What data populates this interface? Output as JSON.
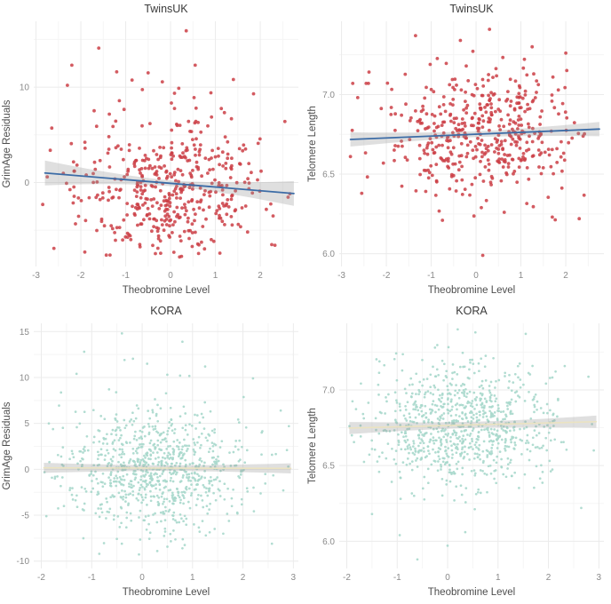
{
  "figure": {
    "background": "#ffffff",
    "grid_major_color": "#ebebeb",
    "grid_minor_color": "#f5f5f5",
    "tick_label_color": "#8a8a8a",
    "axis_label_color": "#4d4d4d",
    "title_color": "#3a3a3a",
    "layout": "2x2 scatter panels"
  },
  "chart_data": [
    {
      "type": "scatter",
      "cohort": "TwinsUK",
      "title": "TwinsUK",
      "xlabel": "Theobromine Level",
      "ylabel": "GrimAge Residuals",
      "xlim": [
        -3.05,
        2.85
      ],
      "ylim": [
        -8.8,
        16.9
      ],
      "xticks": [
        -3,
        -2,
        -1,
        0,
        1,
        2
      ],
      "xtick_labels": [
        "-3",
        "-2",
        "-1",
        "0",
        "1",
        "2"
      ],
      "yticks": [
        0,
        10
      ],
      "ytick_labels": [
        "0",
        "10"
      ],
      "minor_xticks": [
        -2.5,
        -1.5,
        -0.5,
        0.5,
        1.5,
        2.5
      ],
      "minor_yticks": [
        -5,
        5,
        15
      ],
      "points": {
        "n": 460,
        "seed": 7,
        "x_mean": 0.05,
        "x_sd": 1.05,
        "x_min": -2.85,
        "x_max": 2.7,
        "y_mean": -0.7,
        "y_sd": 3.5,
        "y_min": -7.8,
        "y_max": 12.8,
        "color": "#cb3e45",
        "radius": 1.9,
        "opacity": 0.85
      },
      "extreme_points": [
        [
          0.35,
          15.9
        ],
        [
          -1.6,
          14.1
        ],
        [
          -2.2,
          12.3
        ],
        [
          0.55,
          12.3
        ],
        [
          -1.2,
          11.6
        ],
        [
          -0.5,
          11.5
        ],
        [
          1.4,
          10.8
        ],
        [
          -2.3,
          10.2
        ],
        [
          0.9,
          9.4
        ],
        [
          1.85,
          9.3
        ],
        [
          2.55,
          6.4
        ],
        [
          -2.75,
          0.6
        ],
        [
          -2.85,
          -2.3
        ],
        [
          -2.6,
          -6.9
        ],
        [
          -1.35,
          -7.6
        ],
        [
          0.2,
          -7.8
        ],
        [
          1.1,
          -7.4
        ]
      ],
      "trend": {
        "x_start": -2.8,
        "y_start": 1.0,
        "x_end": 2.75,
        "y_end": -1.15,
        "line_color": "#3c6ca6",
        "line_width": 1.8,
        "band_half_width_end": 1.3,
        "band_half_width_mid": 0.3,
        "band_color": "#969696",
        "band_opacity": 0.3
      }
    },
    {
      "type": "scatter",
      "cohort": "TwinsUK",
      "title": "TwinsUK",
      "xlabel": "Theobromine Level",
      "ylabel": "Telomere Length",
      "xlim": [
        -3.05,
        2.85
      ],
      "ylim": [
        5.92,
        7.46
      ],
      "xticks": [
        -3,
        -2,
        -1,
        0,
        1,
        2
      ],
      "xtick_labels": [
        "-3",
        "-2",
        "-1",
        "0",
        "1",
        "2"
      ],
      "yticks": [
        6.0,
        6.5,
        7.0
      ],
      "ytick_labels": [
        "6.0",
        "6.5",
        "7.0"
      ],
      "minor_xticks": [
        -2.5,
        -1.5,
        -0.5,
        0.5,
        1.5,
        2.5
      ],
      "minor_yticks": [
        6.25,
        6.75,
        7.25
      ],
      "points": {
        "n": 460,
        "seed": 13,
        "x_mean": 0.05,
        "x_sd": 1.05,
        "x_min": -2.85,
        "x_max": 2.7,
        "y_mean": 6.745,
        "y_sd": 0.205,
        "y_min": 6.2,
        "y_max": 7.3,
        "color": "#cb3e45",
        "radius": 1.9,
        "opacity": 0.85
      },
      "extreme_points": [
        [
          0.3,
          7.41
        ],
        [
          -1.35,
          7.37
        ],
        [
          -0.35,
          7.34
        ],
        [
          1.25,
          7.3
        ],
        [
          2.0,
          7.26
        ],
        [
          -2.75,
          7.07
        ],
        [
          -2.45,
          7.07
        ],
        [
          0.15,
          5.99
        ],
        [
          -0.75,
          6.21
        ],
        [
          1.7,
          6.23
        ],
        [
          2.3,
          6.22
        ],
        [
          -2.8,
          6.61
        ],
        [
          -2.55,
          6.38
        ]
      ],
      "trend": {
        "x_start": -2.8,
        "y_start": 6.718,
        "x_end": 2.75,
        "y_end": 6.783,
        "line_color": "#3c6ca6",
        "line_width": 1.8,
        "band_half_width_end": 0.045,
        "band_half_width_mid": 0.018,
        "band_color": "#969696",
        "band_opacity": 0.3
      }
    },
    {
      "type": "scatter",
      "cohort": "KORA",
      "title": "KORA",
      "xlabel": "Theobromine Level",
      "ylabel": "GrimAge Residuals",
      "xlim": [
        -2.15,
        3.1
      ],
      "ylim": [
        -10.8,
        15.9
      ],
      "xticks": [
        -2,
        -1,
        0,
        1,
        2,
        3
      ],
      "xtick_labels": [
        "-2",
        "-1",
        "0",
        "1",
        "2",
        "3"
      ],
      "yticks": [
        -10,
        -5,
        0,
        5,
        10,
        15
      ],
      "ytick_labels": [
        "-10",
        "-5",
        "0",
        "5",
        "10",
        "15"
      ],
      "minor_xticks": [
        -1.5,
        -0.5,
        0.5,
        1.5,
        2.5
      ],
      "minor_yticks": [
        -7.5,
        -2.5,
        2.5,
        7.5,
        12.5
      ],
      "points": {
        "n": 880,
        "seed": 21,
        "x_mean": 0.3,
        "x_sd": 0.92,
        "x_min": -1.98,
        "x_max": 2.98,
        "y_mean": 0.0,
        "y_sd": 3.3,
        "y_min": -9.3,
        "y_max": 12.4,
        "color": "#a8d8cc",
        "radius": 1.35,
        "opacity": 0.9
      },
      "extreme_points": [
        [
          -0.4,
          14.8
        ],
        [
          0.8,
          13.9
        ],
        [
          -1.15,
          12.8
        ],
        [
          -0.35,
          11.9
        ],
        [
          0.1,
          11.5
        ],
        [
          1.25,
          11.2
        ],
        [
          -1.3,
          10.4
        ],
        [
          0.5,
          10.3
        ],
        [
          2.2,
          9.9
        ],
        [
          2.75,
          6.4
        ],
        [
          -1.85,
          5.0
        ],
        [
          -0.85,
          -9.2
        ],
        [
          0.3,
          -8.9
        ],
        [
          0.8,
          -8.6
        ],
        [
          -1.9,
          -5.1
        ],
        [
          2.9,
          0.3
        ],
        [
          2.8,
          -2.3
        ]
      ],
      "trend": {
        "x_start": -1.95,
        "y_start": 0.16,
        "x_end": 2.95,
        "y_end": 0.1,
        "line_color": "#ebe3c1",
        "line_width": 1.6,
        "band_half_width_end": 0.55,
        "band_half_width_mid": 0.3,
        "band_color": "#969696",
        "band_opacity": 0.3
      }
    },
    {
      "type": "scatter",
      "cohort": "KORA",
      "title": "KORA",
      "xlabel": "Theobromine Level",
      "ylabel": "Telomere Length",
      "xlim": [
        -2.15,
        3.1
      ],
      "ylim": [
        5.82,
        7.44
      ],
      "xticks": [
        -2,
        -1,
        0,
        1,
        2,
        3
      ],
      "xtick_labels": [
        "-2",
        "-1",
        "0",
        "1",
        "2",
        "3"
      ],
      "yticks": [
        6.0,
        6.5,
        7.0
      ],
      "ytick_labels": [
        "6.0",
        "6.5",
        "7.0"
      ],
      "minor_xticks": [
        -1.5,
        -0.5,
        0.5,
        1.5,
        2.5
      ],
      "minor_yticks": [
        6.25,
        6.75,
        7.25
      ],
      "points": {
        "n": 880,
        "seed": 42,
        "x_mean": 0.3,
        "x_sd": 0.92,
        "x_min": -1.98,
        "x_max": 2.98,
        "y_mean": 6.755,
        "y_sd": 0.2,
        "y_min": 6.2,
        "y_max": 7.3,
        "color": "#a8d8cc",
        "radius": 1.35,
        "opacity": 0.9
      },
      "extreme_points": [
        [
          -0.6,
          5.88
        ],
        [
          0.2,
          7.4
        ],
        [
          0.55,
          7.38
        ],
        [
          1.55,
          7.37
        ],
        [
          -0.95,
          6.04
        ],
        [
          0.35,
          6.06
        ],
        [
          2.65,
          6.22
        ],
        [
          -1.5,
          6.18
        ],
        [
          -1.9,
          6.7
        ],
        [
          2.9,
          6.6
        ],
        [
          0.0,
          5.97
        ]
      ],
      "trend": {
        "x_start": -1.95,
        "y_start": 6.748,
        "x_end": 2.95,
        "y_end": 6.79,
        "line_color": "#ebe3c1",
        "line_width": 1.6,
        "band_half_width_end": 0.04,
        "band_half_width_mid": 0.02,
        "band_color": "#969696",
        "band_opacity": 0.3
      }
    }
  ]
}
